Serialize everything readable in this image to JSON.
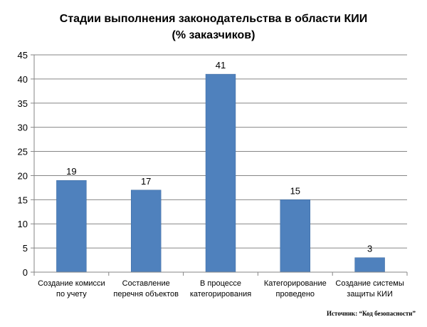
{
  "chart_data": {
    "type": "bar",
    "title_lines": [
      "Стадии выполнения законодательства в области КИИ",
      "(% заказчиков)"
    ],
    "categories": [
      [
        "Создание комисси",
        "по учету"
      ],
      [
        "Составление",
        "перечня объектов"
      ],
      [
        "В процессе",
        "категорирования"
      ],
      [
        "Категорирование",
        "проведено"
      ],
      [
        "Создание системы",
        "защиты КИИ"
      ]
    ],
    "values": [
      19,
      17,
      41,
      15,
      3
    ],
    "ylim": [
      0,
      45
    ],
    "yticks": [
      0,
      5,
      10,
      15,
      20,
      25,
      30,
      35,
      40,
      45
    ],
    "grid": true,
    "legend": "none",
    "bar_color": "#4f81bd"
  },
  "source_text": "Источник: “Код безопасности”"
}
